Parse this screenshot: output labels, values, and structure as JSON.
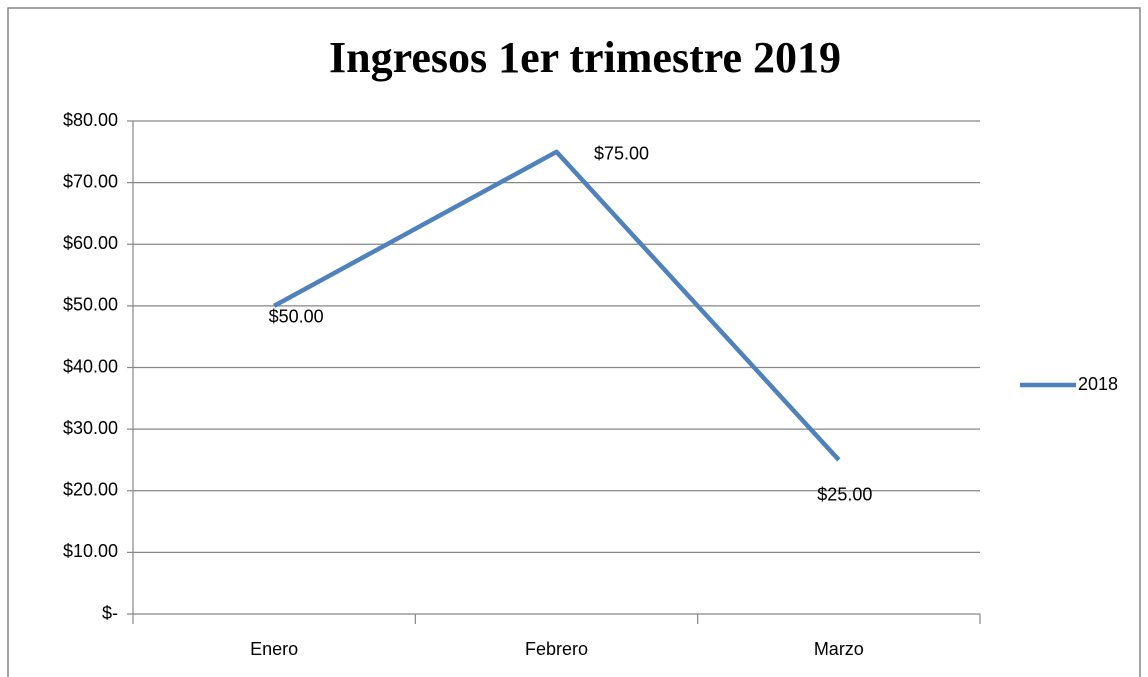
{
  "chart_data": {
    "type": "line",
    "title": "Ingresos 1er trimestre 2019",
    "categories": [
      "Enero",
      "Febrero",
      "Marzo"
    ],
    "series": [
      {
        "name": "2018",
        "color": "#4f81bd",
        "values": [
          50,
          75,
          25
        ],
        "value_labels": [
          "$50.00",
          "$75.00",
          "$25.00"
        ]
      }
    ],
    "ylim": [
      0,
      80
    ],
    "yticks": [
      {
        "value": 0,
        "label": "$-"
      },
      {
        "value": 10,
        "label": "$10.00"
      },
      {
        "value": 20,
        "label": "$20.00"
      },
      {
        "value": 30,
        "label": "$30.00"
      },
      {
        "value": 40,
        "label": "$40.00"
      },
      {
        "value": 50,
        "label": "$50.00"
      },
      {
        "value": 60,
        "label": "$60.00"
      },
      {
        "value": 70,
        "label": "$70.00"
      },
      {
        "value": 80,
        "label": "$80.00"
      }
    ],
    "grid": true,
    "legend": "right"
  }
}
